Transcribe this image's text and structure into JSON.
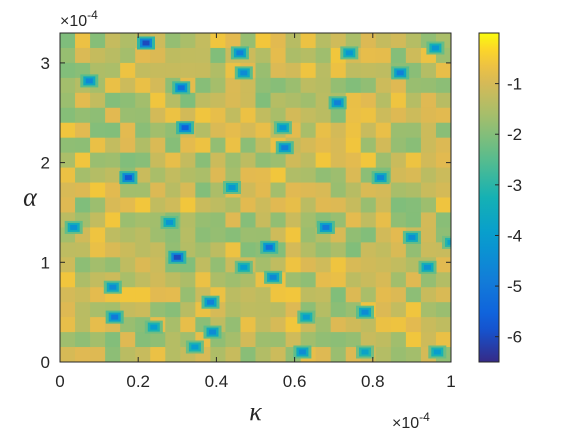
{
  "chart_data": {
    "type": "heatmap",
    "title": "",
    "xlabel": "κ",
    "ylabel": "α",
    "x_exponent": "×10",
    "x_exponent_power": "-4",
    "y_exponent": "×10",
    "y_exponent_power": "-4",
    "xlim": [
      0,
      1
    ],
    "ylim": [
      0,
      3.3
    ],
    "x_ticks": [
      0,
      0.2,
      0.4,
      0.6,
      0.8,
      1
    ],
    "x_tick_labels": [
      "0",
      "0.2",
      "0.4",
      "0.6",
      "0.8",
      "1"
    ],
    "y_ticks": [
      0,
      1,
      2,
      3
    ],
    "y_tick_labels": [
      "0",
      "1",
      "2",
      "3"
    ],
    "colorbar": {
      "range": [
        -6.5,
        0
      ],
      "ticks": [
        -1,
        -2,
        -3,
        -4,
        -5,
        -6
      ],
      "tick_labels": [
        "-1",
        "-2",
        "-3",
        "-4",
        "-5",
        "-6"
      ],
      "colormap": "parula"
    },
    "background_value": -1.3,
    "blue_spots": [
      {
        "x": 0.075,
        "y": 2.82,
        "value": -4.6
      },
      {
        "x": 0.035,
        "y": 1.35,
        "value": -4.3
      },
      {
        "x": 0.135,
        "y": 0.75,
        "value": -4.5
      },
      {
        "x": 0.14,
        "y": 0.45,
        "value": -5.0
      },
      {
        "x": 0.175,
        "y": 1.85,
        "value": -5.8
      },
      {
        "x": 0.22,
        "y": 3.2,
        "value": -6.0
      },
      {
        "x": 0.24,
        "y": 0.35,
        "value": -4.0
      },
      {
        "x": 0.28,
        "y": 1.4,
        "value": -4.2
      },
      {
        "x": 0.3,
        "y": 1.05,
        "value": -6.0
      },
      {
        "x": 0.31,
        "y": 2.75,
        "value": -5.2
      },
      {
        "x": 0.32,
        "y": 2.35,
        "value": -5.6
      },
      {
        "x": 0.345,
        "y": 0.15,
        "value": -4.0
      },
      {
        "x": 0.385,
        "y": 0.6,
        "value": -4.8
      },
      {
        "x": 0.39,
        "y": 0.3,
        "value": -4.5
      },
      {
        "x": 0.44,
        "y": 1.75,
        "value": -4.2
      },
      {
        "x": 0.46,
        "y": 3.1,
        "value": -4.8
      },
      {
        "x": 0.47,
        "y": 2.9,
        "value": -4.5
      },
      {
        "x": 0.47,
        "y": 0.95,
        "value": -4.0
      },
      {
        "x": 0.535,
        "y": 1.15,
        "value": -5.2
      },
      {
        "x": 0.545,
        "y": 0.85,
        "value": -4.6
      },
      {
        "x": 0.57,
        "y": 2.35,
        "value": -4.2
      },
      {
        "x": 0.575,
        "y": 2.15,
        "value": -4.8
      },
      {
        "x": 0.62,
        "y": 0.1,
        "value": -4.5
      },
      {
        "x": 0.63,
        "y": 0.45,
        "value": -4.0
      },
      {
        "x": 0.68,
        "y": 1.35,
        "value": -5.0
      },
      {
        "x": 0.71,
        "y": 2.6,
        "value": -4.8
      },
      {
        "x": 0.74,
        "y": 3.1,
        "value": -4.2
      },
      {
        "x": 0.78,
        "y": 0.5,
        "value": -4.5
      },
      {
        "x": 0.78,
        "y": 0.1,
        "value": -3.8
      },
      {
        "x": 0.82,
        "y": 1.85,
        "value": -4.6
      },
      {
        "x": 0.87,
        "y": 2.9,
        "value": -4.8
      },
      {
        "x": 0.9,
        "y": 1.25,
        "value": -4.4
      },
      {
        "x": 0.94,
        "y": 0.95,
        "value": -4.3
      },
      {
        "x": 0.96,
        "y": 3.15,
        "value": -4.2
      },
      {
        "x": 0.965,
        "y": 0.1,
        "value": -4.0
      },
      {
        "x": 1.0,
        "y": 1.2,
        "value": -3.8
      }
    ]
  }
}
